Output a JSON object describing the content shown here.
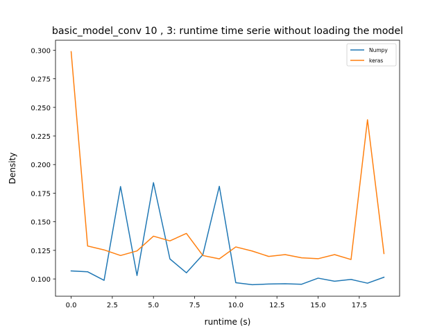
{
  "chart_data": {
    "type": "line",
    "title": "basic_model_conv 10 , 3: runtime time serie without loading the model",
    "xlabel": "runtime (s)",
    "ylabel": "Density",
    "xlim": [
      -0.95,
      19.95
    ],
    "ylim": [
      0.0849,
      0.3087
    ],
    "xticks": [
      0.0,
      2.5,
      5.0,
      7.5,
      10.0,
      12.5,
      15.0,
      17.5
    ],
    "xtick_labels": [
      "0.0",
      "2.5",
      "5.0",
      "7.5",
      "10.0",
      "12.5",
      "15.0",
      "17.5"
    ],
    "yticks": [
      0.1,
      0.125,
      0.15,
      0.175,
      0.2,
      0.225,
      0.25,
      0.275,
      0.3
    ],
    "ytick_labels": [
      "0.100",
      "0.125",
      "0.150",
      "0.175",
      "0.200",
      "0.225",
      "0.250",
      "0.275",
      "0.300"
    ],
    "grid": false,
    "legend_position": "top-right",
    "x": [
      0,
      1,
      2,
      3,
      4,
      5,
      6,
      7,
      8,
      9,
      10,
      11,
      12,
      13,
      14,
      15,
      16,
      17,
      18,
      19
    ],
    "series": [
      {
        "name": "Numpy",
        "color": "#1f77b4",
        "values": [
          0.107,
          0.1063,
          0.0988,
          0.1808,
          0.103,
          0.1842,
          0.1175,
          0.1054,
          0.1212,
          0.181,
          0.0967,
          0.095,
          0.0956,
          0.0958,
          0.0954,
          0.1007,
          0.098,
          0.0996,
          0.0963,
          0.1015
        ]
      },
      {
        "name": "keras",
        "color": "#ff7f0e",
        "values": [
          0.2987,
          0.1288,
          0.1254,
          0.1205,
          0.1245,
          0.1374,
          0.1333,
          0.1398,
          0.1205,
          0.1176,
          0.128,
          0.1244,
          0.1197,
          0.1213,
          0.1185,
          0.1177,
          0.1213,
          0.117,
          0.2392,
          0.1222
        ]
      }
    ]
  }
}
